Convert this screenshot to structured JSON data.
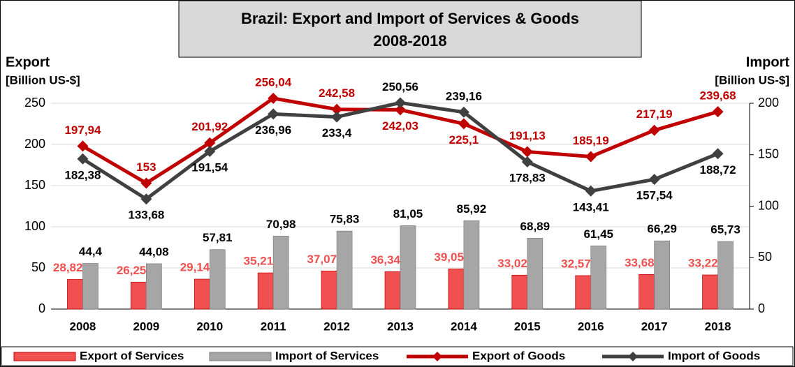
{
  "chart_data": {
    "type": "bar-line",
    "title": "Brazil: Export and Import of Services & Goods",
    "subtitle": "2008-2018",
    "y_label": [
      "Export",
      "[Billion US-$]"
    ],
    "y2_label": [
      "Import",
      "[Billion US-$]"
    ],
    "categories": [
      "2008",
      "2009",
      "2010",
      "2011",
      "2012",
      "2013",
      "2014",
      "2015",
      "2016",
      "2017",
      "2018"
    ],
    "ylim": [
      0,
      250
    ],
    "yticks": [
      0,
      50,
      100,
      150,
      200,
      250
    ],
    "y2lim": [
      0,
      200
    ],
    "y2ticks": [
      0,
      50,
      100,
      150,
      200
    ],
    "grid": true,
    "series": [
      {
        "name": "Export of Services",
        "type": "bar",
        "axis": "y2",
        "color": "#f05050",
        "values": [
          28.82,
          26.25,
          29.14,
          35.21,
          37.07,
          36.34,
          39.05,
          33.02,
          32.57,
          33.68,
          33.22
        ],
        "value_labels": [
          "28,82",
          "26,25",
          "29,14",
          "35,21",
          "37,07",
          "36,34",
          "39,05",
          "33,02",
          "32,57",
          "33,68",
          "33,22"
        ]
      },
      {
        "name": "Import of Services",
        "type": "bar",
        "axis": "y2",
        "color": "#a6a6a6",
        "values": [
          44.4,
          44.08,
          57.81,
          70.98,
          75.83,
          81.05,
          85.92,
          68.89,
          61.45,
          66.29,
          65.73
        ],
        "value_labels": [
          "44,4",
          "44,08",
          "57,81",
          "70,98",
          "75,83",
          "81,05",
          "85,92",
          "68,89",
          "61,45",
          "66,29",
          "65,73"
        ]
      },
      {
        "name": "Export of Goods",
        "type": "line",
        "color": "#c00000",
        "values": [
          197.94,
          153,
          201.92,
          256.04,
          242.58,
          242.03,
          225.1,
          191.13,
          185.19,
          217.19,
          239.68
        ],
        "value_labels": [
          "197,94",
          "153",
          "201,92",
          "256,04",
          "242,58",
          "242,03",
          "225,1",
          "191,13",
          "185,19",
          "217,19",
          "239,68"
        ]
      },
      {
        "name": "Import of Goods",
        "type": "line",
        "color": "#404040",
        "values": [
          182.38,
          133.68,
          191.54,
          236.96,
          233.4,
          250.56,
          239.16,
          178.83,
          143.41,
          157.54,
          188.72
        ],
        "value_labels": [
          "182,38",
          "133,68",
          "191,54",
          "236,96",
          "233,4",
          "250,56",
          "239,16",
          "178,83",
          "143,41",
          "157,54",
          "188,72"
        ]
      }
    ]
  }
}
